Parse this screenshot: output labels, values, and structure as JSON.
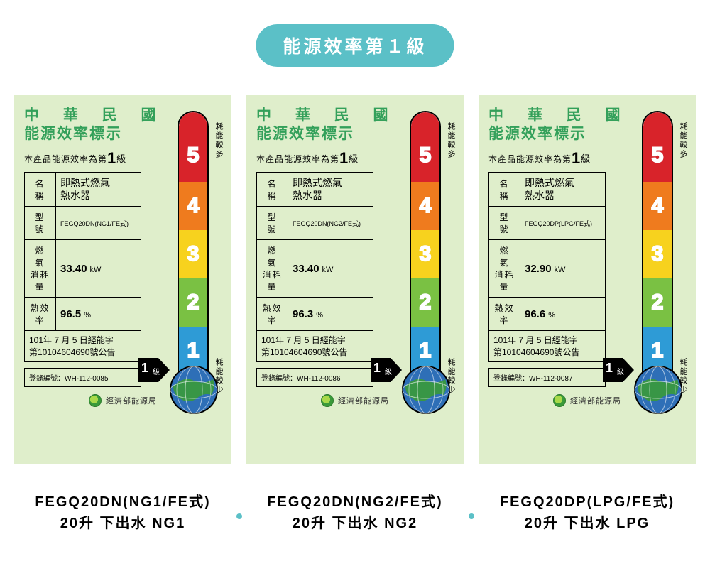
{
  "colors": {
    "pill_bg": "#5bc0c7",
    "card_bg": "#dfeecb",
    "title_color": "#33a05a",
    "bullet": "#5bc0c7",
    "segments": [
      "#d8232a",
      "#ef7b1e",
      "#f7d21e",
      "#7ac143",
      "#2e9bd6"
    ],
    "globe_land": "#3a9a3a",
    "globe_sea": "#2e6fb7"
  },
  "header": {
    "pill_text": "能源效率第１級"
  },
  "shared": {
    "title_line1": "中 華 民 國",
    "title_line2": "能源效率標示",
    "grade_prefix": "本產品能源效率為第",
    "grade_num": "1",
    "grade_suffix": "級",
    "vtext_top": "耗能較多",
    "vtext_bottom": "耗能較少",
    "arrow_num": "1",
    "arrow_suffix": "級",
    "agency": "經濟部能源局",
    "seg_labels": [
      "5",
      "4",
      "3",
      "2",
      "1"
    ],
    "table_labels": {
      "name": "名 稱",
      "model": "型 號",
      "gas": "燃 氣\n消耗量",
      "eff": "熱效率"
    }
  },
  "cards": [
    {
      "product_name": "即熱式燃氣\n熱水器",
      "model": "FEGQ20DN(NG1/FE式)",
      "gas_value": "33.40",
      "gas_unit": "kW",
      "eff_value": "96.5",
      "eff_unit": "%",
      "date_text": "101年 7 月 5 日經能字\n第10104604690號公告",
      "reg_text": "登錄編號：WH-112-0085"
    },
    {
      "product_name": "即熱式燃氣\n熱水器",
      "model": "FEGQ20DN(NG2/FE式)",
      "gas_value": "33.40",
      "gas_unit": "kW",
      "eff_value": "96.3",
      "eff_unit": "%",
      "date_text": "101年 7 月 5 日經能字\n第10104604690號公告",
      "reg_text": "登錄編號：WH-112-0086"
    },
    {
      "product_name": "即熱式燃氣\n熱水器",
      "model": "FEGQ20DP(LPG/FE式)",
      "gas_value": "32.90",
      "gas_unit": "kW",
      "eff_value": "96.6",
      "eff_unit": "%",
      "date_text": "101年 7 月 5 日經能字\n第10104604690號公告",
      "reg_text": "登錄編號：WH-112-0087"
    }
  ],
  "captions": [
    {
      "line1": "FEGQ20DN(NG1/FE式)",
      "line2": "20升 下出水 NG1"
    },
    {
      "line1": "FEGQ20DN(NG2/FE式)",
      "line2": "20升 下出水 NG2"
    },
    {
      "line1": "FEGQ20DP(LPG/FE式)",
      "line2": "20升 下出水 LPG"
    }
  ]
}
